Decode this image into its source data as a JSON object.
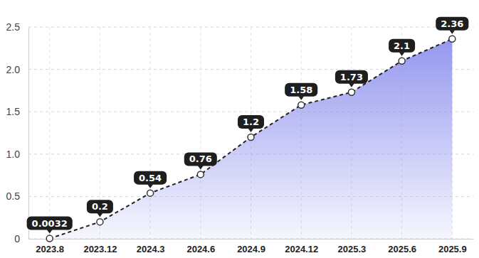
{
  "chart_data": {
    "type": "line",
    "categories": [
      "2023.8",
      "2023.12",
      "2024.3",
      "2024.6",
      "2024.9",
      "2024.12",
      "2025.3",
      "2025.6",
      "2025.9"
    ],
    "values": [
      0.0032,
      0.2,
      0.54,
      0.76,
      1.2,
      1.58,
      1.73,
      2.1,
      2.36
    ],
    "color": "#8f92ee",
    "ylim": [
      0,
      2.5
    ],
    "yticks": [
      0,
      0.5,
      {
        "value": 1,
        "label": "1.0"
      },
      1.5,
      {
        "value": 2,
        "label": "2.0"
      },
      2.5
    ],
    "grid": true,
    "data_labels": true,
    "marker": "circle",
    "line_style": "dashed"
  }
}
